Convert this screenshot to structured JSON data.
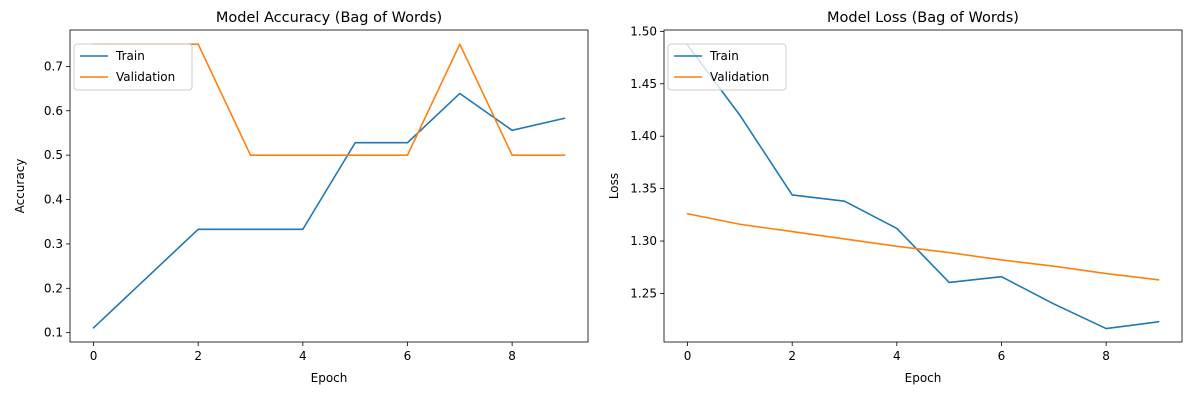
{
  "chart_data": [
    {
      "type": "line",
      "title": "Model Accuracy (Bag of Words)",
      "xlabel": "Epoch",
      "ylabel": "Accuracy",
      "xlim": [
        -0.45,
        9.45
      ],
      "ylim": [
        0.079,
        0.782
      ],
      "xticks": [
        0,
        2,
        4,
        6,
        8
      ],
      "xtick_labels": [
        "0",
        "2",
        "4",
        "6",
        "8"
      ],
      "yticks": [
        0.1,
        0.2,
        0.3,
        0.4,
        0.5,
        0.6,
        0.7
      ],
      "ytick_labels": [
        "0.1",
        "0.2",
        "0.3",
        "0.4",
        "0.5",
        "0.6",
        "0.7"
      ],
      "grid": false,
      "legend_position": "upper-left",
      "x": [
        0,
        1,
        2,
        3,
        4,
        5,
        6,
        7,
        8,
        9
      ],
      "series": [
        {
          "name": "Train",
          "color": "#1f77b4",
          "values": [
            0.111,
            0.222,
            0.333,
            0.333,
            0.333,
            0.528,
            0.528,
            0.639,
            0.556,
            0.583
          ]
        },
        {
          "name": "Validation",
          "color": "#ff7f0e",
          "values": [
            0.75,
            0.75,
            0.75,
            0.5,
            0.5,
            0.5,
            0.5,
            0.75,
            0.5,
            0.5
          ]
        }
      ]
    },
    {
      "type": "line",
      "title": "Model Loss (Bag of Words)",
      "xlabel": "Epoch",
      "ylabel": "Loss",
      "xlim": [
        -0.45,
        9.45
      ],
      "ylim": [
        1.2037,
        1.5013
      ],
      "xticks": [
        0,
        2,
        4,
        6,
        8
      ],
      "xtick_labels": [
        "0",
        "2",
        "4",
        "6",
        "8"
      ],
      "yticks": [
        1.25,
        1.3,
        1.35,
        1.4,
        1.45,
        1.5
      ],
      "ytick_labels": [
        "1.25",
        "1.30",
        "1.35",
        "1.40",
        "1.45",
        "1.50"
      ],
      "grid": false,
      "legend_position": "upper-left",
      "x": [
        0,
        1,
        2,
        3,
        4,
        5,
        6,
        7,
        8,
        9
      ],
      "series": [
        {
          "name": "Train",
          "color": "#1f77b4",
          "values": [
            1.487,
            1.42,
            1.344,
            1.338,
            1.312,
            1.2605,
            1.266,
            1.24,
            1.2165,
            1.223
          ]
        },
        {
          "name": "Validation",
          "color": "#ff7f0e",
          "values": [
            1.326,
            1.316,
            1.309,
            1.302,
            1.295,
            1.289,
            1.282,
            1.276,
            1.269,
            1.263
          ]
        }
      ]
    }
  ]
}
